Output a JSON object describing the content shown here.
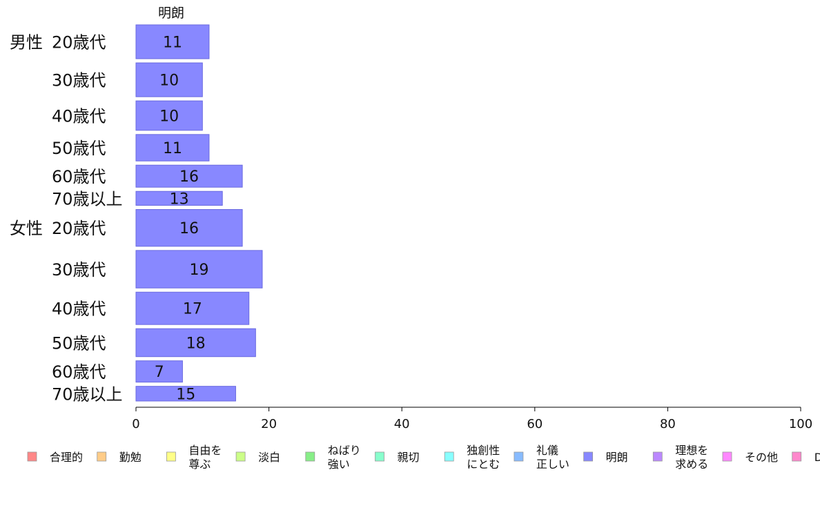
{
  "chart_data": {
    "type": "bar",
    "orientation": "horizontal",
    "series_title": "明朗",
    "groups": [
      {
        "label": "男性",
        "categories": [
          "20歳代",
          "30歳代",
          "40歳代",
          "50歳代",
          "60歳代",
          "70歳以上"
        ]
      },
      {
        "label": "女性",
        "categories": [
          "20歳代",
          "30歳代",
          "40歳代",
          "50歳代",
          "60歳代",
          "70歳以上"
        ]
      }
    ],
    "values": [
      11,
      10,
      10,
      11,
      16,
      13,
      16,
      19,
      17,
      18,
      7,
      15
    ],
    "relative_bar_thickness": [
      46,
      46,
      40,
      36,
      30,
      19,
      50,
      51,
      44,
      38,
      29,
      20
    ],
    "bar_color": "#8888ff",
    "bar_border": "#6a6adf",
    "xlim": [
      0,
      100
    ],
    "x_ticks": [
      0,
      20,
      40,
      60,
      80,
      100
    ],
    "legend_position": "bottom",
    "legend": [
      {
        "label": "合理的",
        "color": "#ff8888"
      },
      {
        "label": "勤勉",
        "color": "#ffcc88"
      },
      {
        "label": "自由を\n尊ぶ",
        "color": "#ffff88"
      },
      {
        "label": "淡白",
        "color": "#ccff88"
      },
      {
        "label": "ねばり\n強い",
        "color": "#88ee88"
      },
      {
        "label": "親切",
        "color": "#88ffcc"
      },
      {
        "label": "独創性\nにとむ",
        "color": "#88ffff"
      },
      {
        "label": "礼儀\n正しい",
        "color": "#88bbff"
      },
      {
        "label": "明朗",
        "color": "#8888ff"
      },
      {
        "label": "理想を\n求める",
        "color": "#bb88ff"
      },
      {
        "label": "その他",
        "color": "#ff88ff"
      },
      {
        "label": "D",
        "color": "#ff88cc"
      }
    ]
  }
}
